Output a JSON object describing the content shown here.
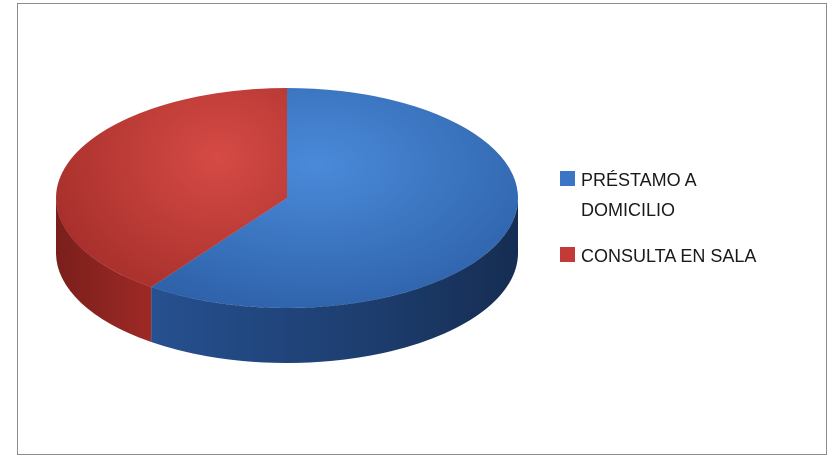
{
  "chart_data": {
    "type": "pie",
    "style": "3d",
    "title": "",
    "legend_position": "right",
    "series": [
      {
        "name": "",
        "categories": [
          "PRÉSTAMO A DOMICILIO",
          "CONSULTA EN SALA"
        ],
        "values": [
          60,
          40
        ]
      }
    ],
    "colors": {
      "PRÉSTAMO A DOMICILIO": "#3B76C6",
      "CONSULTA EN SALA": "#C23B38"
    }
  }
}
